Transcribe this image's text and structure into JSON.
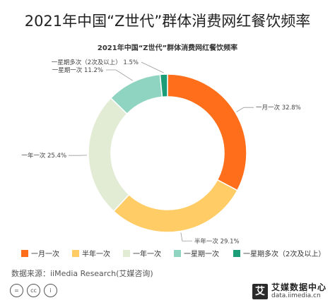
{
  "header": {
    "title": "2021年中国“Z世代”群体消费网红餐饮频率"
  },
  "chart_data": {
    "type": "pie",
    "title": "2021年中国“Z世代”群体消费网红餐饮频率",
    "categories": [
      "一月一次",
      "半年一次",
      "一年一次",
      "一星期一次",
      "一星期多次（2次及以上）"
    ],
    "legend_labels": [
      "一月一次",
      "半年一次",
      "一年一次",
      "一星期一次",
      "一星期多次（2次及以上）"
    ],
    "values": [
      32.8,
      29.1,
      25.4,
      11.2,
      1.5
    ],
    "slice_labels": [
      "一月一次 32.8%",
      "半年一次 29.1%",
      "一年一次 25.4%",
      "一星期一次 11.2%",
      "一星期多次（2次及以上） 1.5%"
    ],
    "colors": [
      "#FF6E1A",
      "#FFCC66",
      "#E2EBD4",
      "#8ED4C0",
      "#1B9E77"
    ],
    "unit": "%",
    "donut": true,
    "legend_position": "bottom"
  },
  "footer": {
    "source": "数据来源：iiMedia Research(艾媒咨询)",
    "cc_icons": [
      "=",
      "cc",
      "i"
    ],
    "brand_mark": "艾",
    "brand_name": "艾媒数据中心",
    "brand_url": "data.iimedia.cn"
  }
}
